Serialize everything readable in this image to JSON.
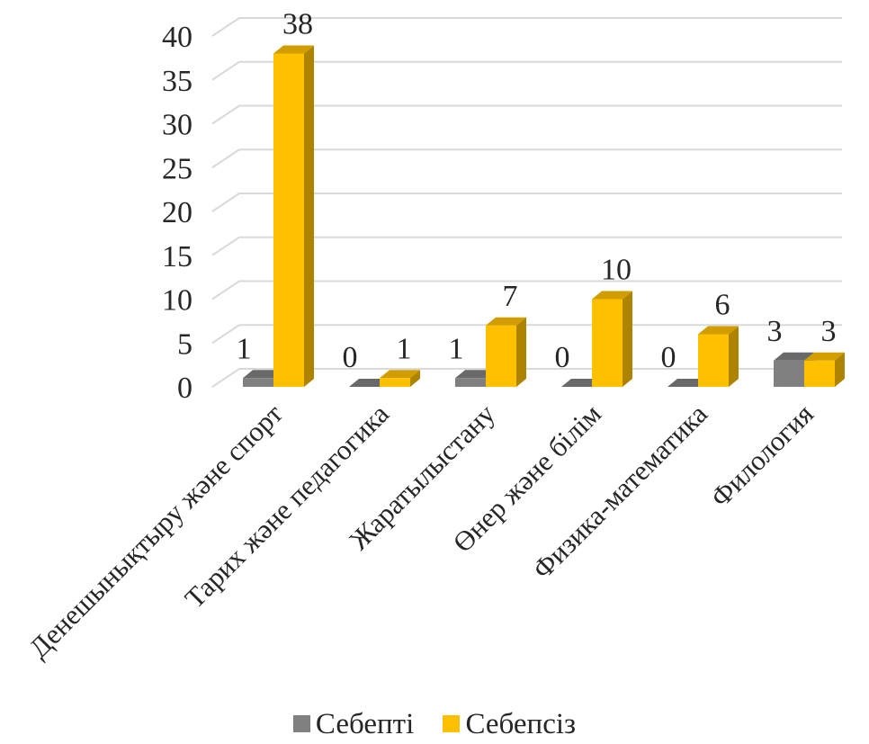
{
  "chart_data": {
    "type": "bar",
    "categories": [
      "Денешынықтыру және спорт",
      "Тарих және педагогика",
      "Жаратылыстану",
      "Өнер және білім",
      "Физика-математика",
      "Филология"
    ],
    "series": [
      {
        "name": "Себепті",
        "values": [
          1,
          0,
          1,
          0,
          0,
          3
        ],
        "color": "#808080"
      },
      {
        "name": "Себепсіз",
        "values": [
          38,
          1,
          7,
          10,
          6,
          3
        ],
        "color": "#FFC000"
      }
    ],
    "yticks": [
      "0",
      "5",
      "10",
      "15",
      "20",
      "25",
      "30",
      "35",
      "40"
    ],
    "ylim": [
      0,
      40
    ],
    "grid": true,
    "style": "3d-clustered-column",
    "legend_position": "bottom"
  }
}
